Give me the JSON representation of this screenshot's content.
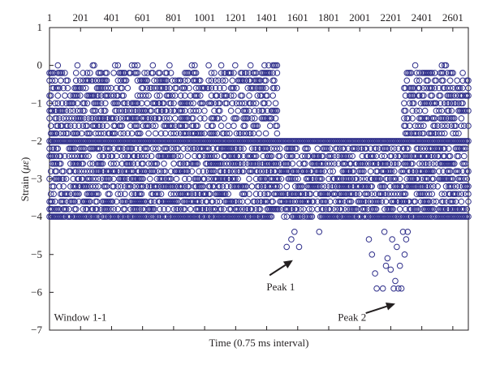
{
  "chart_data": {
    "type": "scatter",
    "xlabel_main": "Time (0.75 ms interval)",
    "ylabel_prefix": "Strain (",
    "ylabel_unit": "με",
    "ylabel_suffix": ")",
    "x_ticks": [
      1,
      201,
      401,
      601,
      801,
      1001,
      1201,
      1401,
      1601,
      1801,
      2001,
      2201,
      2401,
      2601
    ],
    "y_ticks": [
      1,
      0,
      -1,
      -2,
      -3,
      -4,
      -5,
      -6,
      -7
    ],
    "xlim": [
      1,
      2701
    ],
    "ylim": [
      -7,
      1
    ],
    "grid": false,
    "marker": "open-circle",
    "series_color": "#2e2e8a",
    "levels": [
      0,
      -0.2,
      -0.4,
      -0.6,
      -0.8,
      -1.0,
      -1.2,
      -1.4,
      -1.6,
      -1.8,
      -2.0,
      -2.2,
      -2.4,
      -2.6,
      -2.8,
      -3.0,
      -3.2,
      -3.4,
      -3.6,
      -3.8,
      -4.0
    ],
    "outliers": [
      {
        "x": 1530,
        "y": -4.8
      },
      {
        "x": 1560,
        "y": -4.6
      },
      {
        "x": 1580,
        "y": -4.4
      },
      {
        "x": 1610,
        "y": -4.8
      },
      {
        "x": 1740,
        "y": -4.4
      },
      {
        "x": 2060,
        "y": -4.6
      },
      {
        "x": 2080,
        "y": -5.0
      },
      {
        "x": 2100,
        "y": -5.5
      },
      {
        "x": 2110,
        "y": -5.9
      },
      {
        "x": 2150,
        "y": -5.9
      },
      {
        "x": 2160,
        "y": -4.4
      },
      {
        "x": 2170,
        "y": -5.3
      },
      {
        "x": 2180,
        "y": -5.1
      },
      {
        "x": 2200,
        "y": -5.4
      },
      {
        "x": 2210,
        "y": -4.6
      },
      {
        "x": 2220,
        "y": -5.9
      },
      {
        "x": 2230,
        "y": -5.7
      },
      {
        "x": 2240,
        "y": -4.8
      },
      {
        "x": 2250,
        "y": -5.9
      },
      {
        "x": 2260,
        "y": -5.3
      },
      {
        "x": 2270,
        "y": -5.9
      },
      {
        "x": 2280,
        "y": -4.4
      },
      {
        "x": 2290,
        "y": -5.0
      },
      {
        "x": 2300,
        "y": -4.6
      },
      {
        "x": 2310,
        "y": -4.4
      }
    ],
    "annotations": [
      {
        "text": "Peak 1",
        "x": 1400,
        "y": -5.95,
        "arrow_from": [
          1420,
          -5.55
        ],
        "arrow_to": [
          1570,
          -5.15
        ]
      },
      {
        "text": "Peak 2",
        "x": 1860,
        "y": -6.75,
        "arrow_from": [
          2040,
          -6.55
        ],
        "arrow_to": [
          2230,
          -6.3
        ]
      },
      {
        "text": "Window 1-1",
        "x": 30,
        "y": -6.75
      }
    ]
  }
}
